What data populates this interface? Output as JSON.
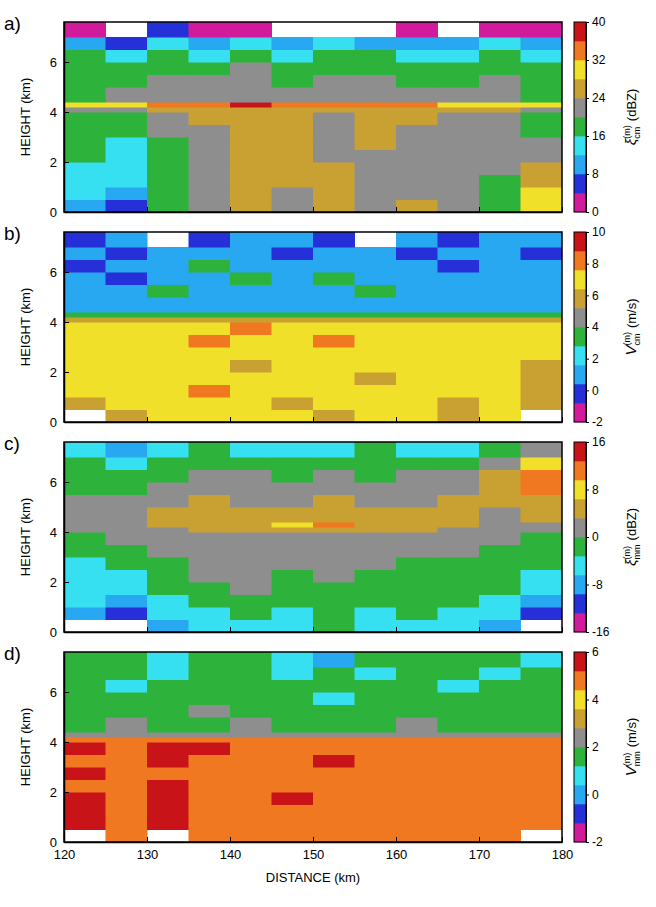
{
  "chart_data": [
    {
      "type": "heatmap",
      "panel": "a)",
      "ylabel": "HEIGHT (km)",
      "xlim": [
        120,
        180
      ],
      "xticks": [
        120,
        130,
        140,
        150,
        160,
        170,
        180
      ],
      "ylim": [
        0,
        7.6
      ],
      "yticks": [
        0,
        2,
        4,
        6
      ],
      "tick_labels": "y",
      "x_edges": [
        120,
        125,
        130,
        135,
        140,
        145,
        150,
        155,
        160,
        165,
        170,
        175,
        180
      ],
      "y_edges": [
        0,
        0.5,
        1,
        1.5,
        2,
        2.5,
        3,
        3.5,
        4,
        4.2,
        4.4,
        5,
        5.5,
        6,
        6.5,
        7,
        7.6
      ],
      "values": [
        [
          10,
          6,
          18,
          22,
          26,
          22,
          26,
          22,
          26,
          22,
          18,
          30
        ],
        [
          14,
          10,
          18,
          22,
          26,
          22,
          26,
          22,
          22,
          22,
          18,
          30
        ],
        [
          14,
          14,
          18,
          22,
          26,
          26,
          26,
          22,
          22,
          22,
          18,
          26
        ],
        [
          14,
          14,
          18,
          22,
          26,
          26,
          26,
          22,
          22,
          22,
          22,
          26
        ],
        [
          18,
          14,
          18,
          22,
          26,
          26,
          22,
          22,
          22,
          22,
          22,
          22
        ],
        [
          18,
          14,
          18,
          22,
          26,
          26,
          22,
          26,
          22,
          22,
          22,
          22
        ],
        [
          18,
          18,
          22,
          22,
          26,
          26,
          22,
          26,
          22,
          22,
          22,
          18
        ],
        [
          18,
          18,
          22,
          26,
          26,
          26,
          22,
          26,
          26,
          22,
          22,
          18
        ],
        [
          22,
          22,
          26,
          26,
          26,
          26,
          26,
          26,
          26,
          26,
          26,
          22
        ],
        [
          30,
          30,
          34,
          34,
          38,
          34,
          34,
          34,
          34,
          30,
          30,
          30
        ],
        [
          18,
          22,
          22,
          22,
          22,
          22,
          22,
          22,
          22,
          22,
          22,
          18
        ],
        [
          18,
          18,
          22,
          22,
          22,
          18,
          22,
          22,
          18,
          18,
          22,
          18
        ],
        [
          18,
          18,
          18,
          18,
          22,
          18,
          18,
          18,
          18,
          18,
          18,
          18
        ],
        [
          18,
          14,
          18,
          14,
          18,
          14,
          18,
          18,
          14,
          14,
          18,
          14
        ],
        [
          10,
          6,
          14,
          10,
          14,
          10,
          14,
          10,
          10,
          10,
          14,
          10
        ],
        [
          2,
          null,
          6,
          2,
          2,
          null,
          null,
          null,
          2,
          null,
          2,
          2
        ]
      ],
      "colorbar": {
        "range": [
          0,
          40
        ],
        "ticks": [
          0,
          8,
          16,
          24,
          32,
          40
        ],
        "colors": [
          "#d01c9a",
          "#2530d8",
          "#27a8f0",
          "#36e0f0",
          "#2db23b",
          "#8e8e8e",
          "#c9a032",
          "#f0e02a",
          "#f07820",
          "#c81418"
        ],
        "label": {
          "symbol": "ξ",
          "superscript": "(m)",
          "subscript": "cm",
          "unit": "(dBZ)"
        }
      }
    },
    {
      "type": "heatmap",
      "panel": "b)",
      "ylabel": "HEIGHT (km)",
      "xlim": [
        120,
        180
      ],
      "xticks": [
        120,
        130,
        140,
        150,
        160,
        170,
        180
      ],
      "ylim": [
        0,
        7.6
      ],
      "yticks": [
        0,
        2,
        4,
        6
      ],
      "tick_labels": "y",
      "x_edges": [
        120,
        125,
        130,
        135,
        140,
        145,
        150,
        155,
        160,
        165,
        170,
        175,
        180
      ],
      "y_edges": [
        0,
        0.5,
        1,
        1.5,
        2,
        2.5,
        3,
        3.5,
        4,
        4.2,
        4.4,
        5,
        5.5,
        6,
        6.5,
        7,
        7.6
      ],
      "values": [
        [
          null,
          6,
          7,
          7,
          7,
          7,
          6,
          7,
          7,
          6,
          7,
          null
        ],
        [
          6,
          7,
          7,
          7,
          7,
          6,
          7,
          7,
          7,
          6,
          7,
          6
        ],
        [
          7,
          7,
          7,
          8,
          7,
          7,
          7,
          7,
          7,
          7,
          7,
          6
        ],
        [
          7,
          7,
          7,
          7,
          7,
          7,
          7,
          6,
          7,
          7,
          7,
          6
        ],
        [
          7,
          7,
          7,
          7,
          6,
          7,
          7,
          7,
          7,
          7,
          7,
          6
        ],
        [
          7,
          7,
          7,
          7,
          7,
          7,
          7,
          7,
          7,
          7,
          7,
          7
        ],
        [
          7,
          7,
          7,
          8,
          7,
          7,
          8,
          7,
          7,
          7,
          7,
          7
        ],
        [
          7,
          7,
          7,
          7,
          8,
          7,
          7,
          7,
          7,
          7,
          7,
          7
        ],
        [
          6,
          6,
          6,
          6,
          6,
          6,
          6,
          6,
          6,
          6,
          6,
          6
        ],
        [
          3.5,
          3.5,
          3.5,
          3.5,
          3.5,
          3.5,
          3.5,
          3.5,
          3.5,
          3.5,
          3.5,
          3.5
        ],
        [
          1,
          1,
          1,
          1,
          1,
          1,
          1,
          1,
          1,
          1,
          1,
          1
        ],
        [
          1,
          1,
          3,
          1,
          1,
          1,
          1,
          3,
          1,
          1,
          1,
          1
        ],
        [
          1,
          0,
          1,
          1,
          3,
          1,
          3,
          1,
          1,
          1,
          1,
          1
        ],
        [
          0,
          1,
          1,
          3,
          1,
          1,
          1,
          1,
          1,
          0,
          1,
          1
        ],
        [
          1,
          0,
          1,
          1,
          1,
          0,
          1,
          1,
          0,
          1,
          1,
          0
        ],
        [
          0,
          1,
          null,
          0,
          1,
          1,
          0,
          null,
          1,
          0,
          1,
          1
        ]
      ],
      "colorbar": {
        "range": [
          -2,
          10
        ],
        "ticks": [
          -2,
          0,
          2,
          4,
          6,
          8,
          10
        ],
        "colors": [
          "#d01c9a",
          "#2530d8",
          "#27a8f0",
          "#36e0f0",
          "#2db23b",
          "#8e8e8e",
          "#c9a032",
          "#f0e02a",
          "#f07820",
          "#c81418"
        ],
        "label": {
          "symbol": "V",
          "superscript": "(m)",
          "subscript": "cm",
          "unit": "(m/s)"
        }
      }
    },
    {
      "type": "heatmap",
      "panel": "c)",
      "ylabel": "HEIGHT (km)",
      "xlim": [
        120,
        180
      ],
      "xticks": [
        120,
        130,
        140,
        150,
        160,
        170,
        180
      ],
      "ylim": [
        0,
        7.6
      ],
      "yticks": [
        0,
        2,
        4,
        6
      ],
      "tick_labels": "y",
      "x_edges": [
        120,
        125,
        130,
        135,
        140,
        145,
        150,
        155,
        160,
        165,
        170,
        175,
        180
      ],
      "y_edges": [
        0,
        0.5,
        1,
        1.5,
        2,
        2.5,
        3,
        3.5,
        4,
        4.2,
        4.4,
        5,
        5.5,
        6,
        6.5,
        7,
        7.6
      ],
      "values": [
        [
          null,
          null,
          -8,
          -5,
          -5,
          -5,
          -2,
          -5,
          -5,
          -5,
          -8,
          null
        ],
        [
          -8,
          -11,
          -5,
          -5,
          -2,
          -5,
          -2,
          -5,
          -2,
          -5,
          -5,
          -11
        ],
        [
          -5,
          -8,
          -5,
          -2,
          -2,
          -2,
          -2,
          -2,
          -2,
          -2,
          -5,
          -8
        ],
        [
          -5,
          -5,
          -2,
          -2,
          1.5,
          -2,
          -2,
          -2,
          -2,
          -2,
          -2,
          -5
        ],
        [
          -5,
          -5,
          -2,
          1.5,
          1.5,
          -2,
          1.5,
          -2,
          -2,
          -2,
          -2,
          -5
        ],
        [
          -5,
          -2,
          -2,
          1.5,
          1.5,
          1.5,
          1.5,
          1.5,
          -2,
          -2,
          -2,
          -2
        ],
        [
          -2,
          -2,
          1.5,
          1.5,
          1.5,
          1.5,
          1.5,
          1.5,
          1.5,
          1.5,
          -2,
          -2
        ],
        [
          -2,
          1.5,
          1.5,
          1.5,
          1.5,
          1.5,
          1.5,
          1.5,
          1.5,
          1.5,
          1.5,
          -2
        ],
        [
          1.5,
          1.5,
          1.5,
          5,
          5,
          5,
          5,
          5,
          5,
          1.5,
          1.5,
          1.5
        ],
        [
          1.5,
          1.5,
          5,
          5,
          5,
          8,
          11,
          5,
          5,
          5,
          1.5,
          1.5
        ],
        [
          1.5,
          1.5,
          5,
          5,
          5,
          5,
          5,
          5,
          5,
          5,
          1.5,
          5
        ],
        [
          1.5,
          1.5,
          1.5,
          5,
          1.5,
          1.5,
          5,
          1.5,
          1.5,
          5,
          5,
          5
        ],
        [
          -2,
          -2,
          1.5,
          1.5,
          1.5,
          1.5,
          1.5,
          1.5,
          1.5,
          1.5,
          5,
          11
        ],
        [
          -2,
          -2,
          -2,
          1.5,
          1.5,
          -2,
          1.5,
          -2,
          1.5,
          1.5,
          5,
          11
        ],
        [
          -2,
          -5,
          -2,
          -2,
          -2,
          -2,
          -2,
          -2,
          -2,
          -2,
          1.5,
          8
        ],
        [
          -5,
          -8,
          -5,
          -2,
          -5,
          -5,
          -5,
          -2,
          -5,
          -5,
          -2,
          1.5
        ]
      ],
      "colorbar": {
        "range": [
          -16,
          16
        ],
        "ticks": [
          -16,
          -8,
          0,
          8,
          16
        ],
        "colors": [
          "#d01c9a",
          "#2530d8",
          "#27a8f0",
          "#36e0f0",
          "#2db23b",
          "#8e8e8e",
          "#c9a032",
          "#f0e02a",
          "#f07820",
          "#c81418"
        ],
        "label": {
          "symbol": "ξ",
          "superscript": "(m)",
          "subscript": "mm",
          "unit": "(dBZ)"
        }
      }
    },
    {
      "type": "heatmap",
      "panel": "d)",
      "ylabel": "HEIGHT (km)",
      "xlabel": "DISTANCE (km)",
      "xlim": [
        120,
        180
      ],
      "xticks": [
        120,
        130,
        140,
        150,
        160,
        170,
        180
      ],
      "ylim": [
        0,
        7.6
      ],
      "yticks": [
        0,
        2,
        4,
        6
      ],
      "x_edges": [
        120,
        125,
        130,
        135,
        140,
        145,
        150,
        155,
        160,
        165,
        170,
        175,
        180
      ],
      "y_edges": [
        0,
        0.5,
        1,
        1.5,
        2,
        2.5,
        3,
        3.5,
        4,
        4.2,
        4.4,
        5,
        5.5,
        6,
        6.5,
        7,
        7.6
      ],
      "values": [
        [
          null,
          4.8,
          null,
          4.8,
          4.8,
          4.8,
          4.8,
          4.8,
          4.8,
          4.8,
          4.8,
          null
        ],
        [
          5.6,
          4.8,
          5.6,
          4.8,
          4.8,
          4.8,
          4.8,
          4.8,
          4.8,
          4.8,
          4.8,
          4.8
        ],
        [
          5.6,
          4.8,
          5.6,
          4.8,
          4.8,
          4.8,
          4.8,
          4.8,
          4.8,
          4.8,
          4.8,
          4.8
        ],
        [
          5.6,
          4.8,
          5.6,
          4.8,
          4.8,
          5.6,
          4.8,
          4.8,
          4.8,
          4.8,
          4.8,
          4.8
        ],
        [
          4.8,
          4.8,
          5.6,
          4.8,
          4.8,
          4.8,
          4.8,
          4.8,
          4.8,
          4.8,
          4.8,
          4.8
        ],
        [
          5.6,
          4.8,
          4.8,
          4.8,
          4.8,
          4.8,
          4.8,
          4.8,
          4.8,
          4.8,
          4.8,
          4.8
        ],
        [
          4.8,
          4.8,
          5.6,
          4.8,
          4.8,
          4.8,
          5.6,
          4.8,
          4.8,
          4.8,
          4.8,
          4.8
        ],
        [
          5.6,
          4.8,
          5.6,
          5.6,
          4.8,
          4.8,
          4.8,
          4.8,
          4.8,
          4.8,
          4.8,
          4.8
        ],
        [
          4.8,
          4.8,
          4.8,
          4.8,
          4.8,
          4.8,
          4.8,
          4.8,
          4.8,
          4.8,
          4.8,
          4.8
        ],
        [
          2.4,
          2.4,
          2.4,
          2.4,
          2.4,
          2.4,
          2.4,
          2.4,
          2.4,
          2.4,
          2.4,
          2.4
        ],
        [
          1.6,
          2.4,
          1.6,
          1.6,
          2.4,
          1.6,
          1.6,
          1.6,
          2.4,
          1.6,
          1.6,
          1.6
        ],
        [
          1.6,
          1.6,
          1.6,
          2.4,
          1.6,
          1.6,
          1.6,
          1.6,
          1.6,
          1.6,
          1.6,
          1.6
        ],
        [
          1.6,
          1.6,
          1.6,
          1.6,
          1.6,
          1.6,
          0.8,
          1.6,
          1.6,
          1.6,
          1.6,
          1.6
        ],
        [
          1.6,
          0.8,
          1.6,
          1.6,
          1.6,
          1.6,
          1.6,
          1.6,
          1.6,
          0.8,
          1.6,
          1.6
        ],
        [
          1.6,
          1.6,
          0.8,
          1.6,
          1.6,
          0.8,
          1.6,
          0.8,
          1.6,
          1.6,
          0.8,
          1.6
        ],
        [
          1.6,
          1.6,
          0.8,
          1.6,
          1.6,
          0.8,
          0,
          1.6,
          1.6,
          1.6,
          1.6,
          0.8
        ]
      ],
      "colorbar": {
        "range": [
          -2,
          6
        ],
        "ticks": [
          -2,
          0,
          2,
          4,
          6
        ],
        "colors": [
          "#d01c9a",
          "#2530d8",
          "#27a8f0",
          "#36e0f0",
          "#2db23b",
          "#8e8e8e",
          "#c9a032",
          "#f0e02a",
          "#f07820",
          "#c81418"
        ],
        "label": {
          "symbol": "V",
          "superscript": "(m)",
          "subscript": "mm",
          "unit": "(m/s)"
        }
      }
    }
  ]
}
